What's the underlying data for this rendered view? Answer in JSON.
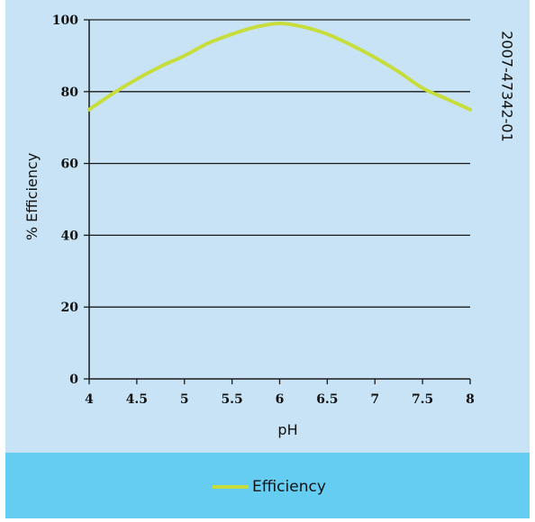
{
  "figure_code": "2007-47342-01",
  "colors": {
    "plot_background": "#c8e3f5",
    "legend_background": "#66cdf2",
    "line": "#c7dd3c",
    "gridline": "#1a1a1a",
    "axis": "#1a1a1a",
    "text": "#111111"
  },
  "legend": {
    "label": "Efficiency",
    "placement": "bottom"
  },
  "chart_data": {
    "type": "line",
    "xlabel": "pH",
    "ylabel": "% Efficiency",
    "xlim": [
      4,
      8
    ],
    "ylim": [
      0,
      100
    ],
    "x_ticks": [
      4,
      4.5,
      5,
      5.5,
      6,
      6.5,
      7,
      7.5,
      8
    ],
    "x_tick_labels": [
      "4",
      "4.5",
      "5",
      "5.5",
      "6",
      "6.5",
      "7",
      "7.5",
      "8"
    ],
    "y_ticks": [
      0,
      20,
      40,
      60,
      80,
      100
    ],
    "y_tick_labels": [
      "0",
      "20",
      "40",
      "60",
      "80",
      "100"
    ],
    "grid": "horizontal",
    "series": [
      {
        "name": "Efficiency",
        "x": [
          4,
          4.25,
          4.5,
          4.75,
          5,
          5.25,
          5.5,
          5.75,
          6,
          6.25,
          6.5,
          6.75,
          7,
          7.25,
          7.5,
          7.75,
          8
        ],
        "y": [
          75,
          79.5,
          83.5,
          87,
          90,
          93.5,
          96,
          98,
          99,
          98,
          96,
          93,
          89.5,
          85.5,
          81,
          78,
          75
        ]
      }
    ]
  }
}
